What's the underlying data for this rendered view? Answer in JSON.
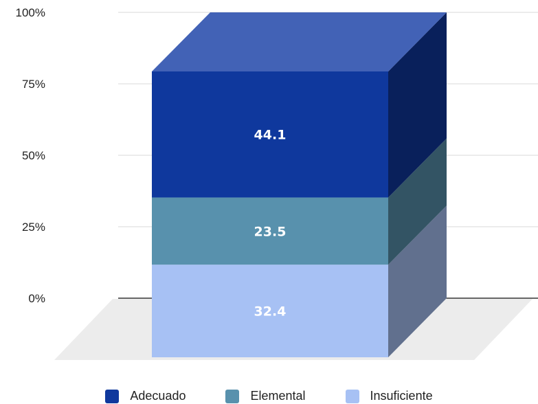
{
  "chart_data": {
    "type": "bar",
    "stacked": true,
    "three_d": true,
    "categories": [
      ""
    ],
    "series": [
      {
        "name": "Insuficiente",
        "values": [
          32.4
        ],
        "label": "32.4",
        "color": "#a7c1f4"
      },
      {
        "name": "Elemental",
        "values": [
          23.5
        ],
        "label": "23.5",
        "color": "#5891ad"
      },
      {
        "name": "Adecuado",
        "values": [
          44.1
        ],
        "label": "44.1",
        "color": "#0f389d"
      }
    ],
    "y_ticks": [
      "0%",
      "25%",
      "50%",
      "75%",
      "100%"
    ],
    "ylim": [
      0,
      100
    ],
    "grid": true,
    "legend_position": "bottom",
    "legend": [
      {
        "label": "Adecuado",
        "color": "#0f389d"
      },
      {
        "label": "Elemental",
        "color": "#5891ad"
      },
      {
        "label": "Insuficiente",
        "color": "#a7c1f4"
      }
    ],
    "colors": {
      "top_face": "#4262b6",
      "floor": "#ececec",
      "gridline": "#d9d9d9",
      "baseline": "#333333"
    }
  }
}
